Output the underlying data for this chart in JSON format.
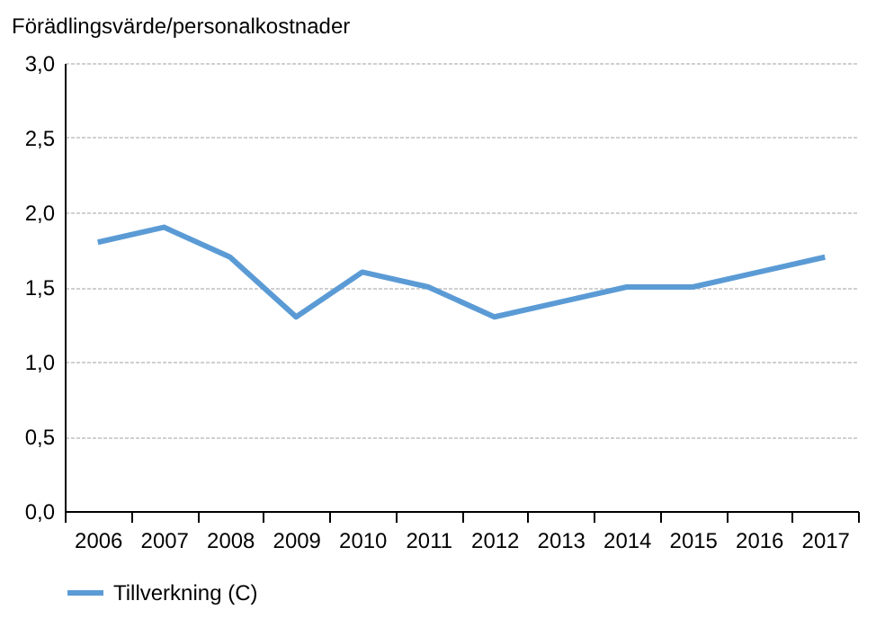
{
  "chart_data": {
    "type": "line",
    "ylabel": "Förädlingsvärde/personalkostnader",
    "categories": [
      "2006",
      "2007",
      "2008",
      "2009",
      "2010",
      "2011",
      "2012",
      "2013",
      "2014",
      "2015",
      "2016",
      "2017"
    ],
    "series": [
      {
        "name": "Tillverkning (C)",
        "color": "#5b9bd5",
        "values": [
          1.8,
          1.9,
          1.7,
          1.3,
          1.6,
          1.5,
          1.3,
          1.4,
          1.5,
          1.5,
          1.6,
          1.7
        ]
      }
    ],
    "ylim": [
      0,
      3
    ],
    "yticks": [
      {
        "value": 0,
        "label": "0,0"
      },
      {
        "value": 0.5,
        "label": "0,5"
      },
      {
        "value": 1,
        "label": "1,0"
      },
      {
        "value": 1.5,
        "label": "1,5"
      },
      {
        "value": 2,
        "label": "2,0"
      },
      {
        "value": 2.5,
        "label": "2,5"
      },
      {
        "value": 3,
        "label": "3,0"
      }
    ],
    "grid": "y",
    "legend": "bottom",
    "marker": "none",
    "line_style": "solid"
  }
}
